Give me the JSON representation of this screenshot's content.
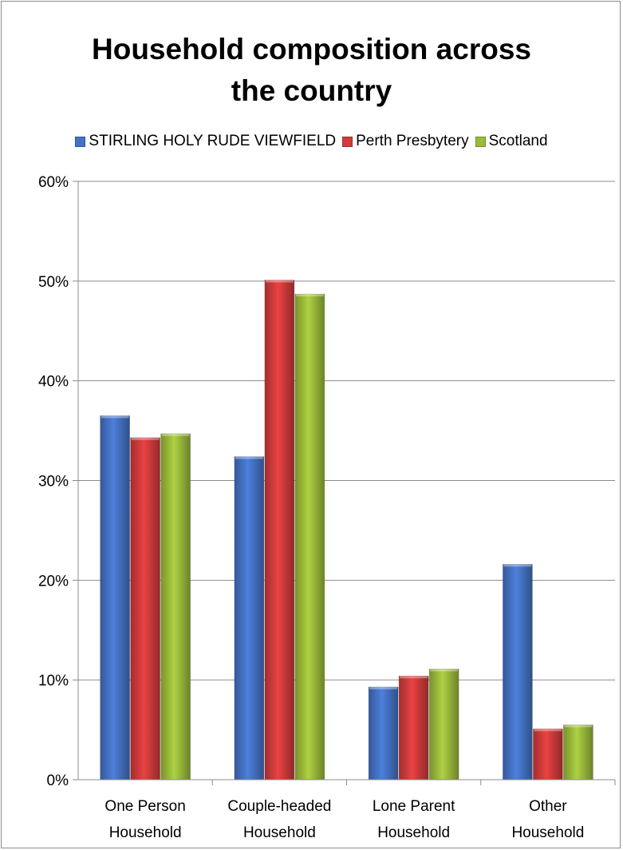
{
  "chart_data": {
    "type": "bar",
    "title_lines": [
      "Household composition across",
      "the country"
    ],
    "categories": [
      [
        "One Person",
        "Household"
      ],
      [
        "Couple-headed",
        "Household"
      ],
      [
        "Lone Parent",
        "Household"
      ],
      [
        "Other",
        "Household"
      ]
    ],
    "series": [
      {
        "name": "STIRLING HOLY RUDE VIEWFIELD",
        "color": "#4472C4",
        "values": [
          36.5,
          32.4,
          9.3,
          21.6
        ]
      },
      {
        "name": "Perth Presbytery",
        "color": "#D13B3B",
        "values": [
          34.3,
          50.1,
          10.4,
          5.1
        ]
      },
      {
        "name": "Scotland",
        "color": "#9BBB3B",
        "values": [
          34.7,
          48.7,
          11.1,
          5.5
        ]
      }
    ],
    "y_ticks": [
      "0%",
      "10%",
      "20%",
      "30%",
      "40%",
      "50%",
      "60%"
    ],
    "ylim": [
      0,
      60
    ],
    "y_unit": "%",
    "grid": true,
    "legend_position": "top"
  }
}
